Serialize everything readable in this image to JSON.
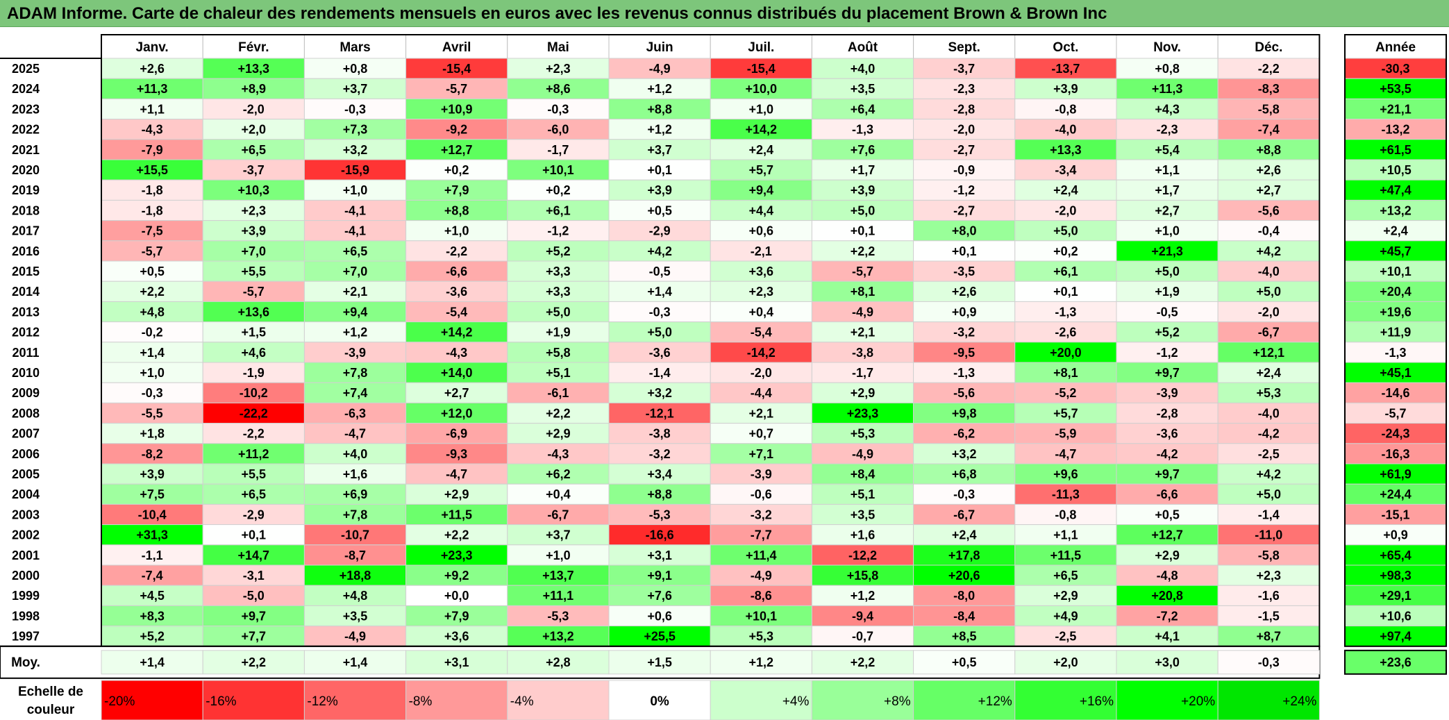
{
  "title": "ADAM Informe. Carte de chaleur des rendements mensuels en euros avec les revenus connus distribués du placement Brown & Brown Inc",
  "chart_data": {
    "type": "heatmap",
    "months": [
      "Janv.",
      "Févr.",
      "Mars",
      "Avril",
      "Mai",
      "Juin",
      "Juil.",
      "Août",
      "Sept.",
      "Oct.",
      "Nov.",
      "Déc."
    ],
    "year_header": "Année",
    "rows": [
      {
        "year": "2025",
        "values": [
          "+2,6",
          "+13,3",
          "+0,8",
          "-15,4",
          "+2,3",
          "-4,9",
          "-15,4",
          "+4,0",
          "-3,7",
          "-13,7",
          "+0,8",
          "-2,2"
        ],
        "annual": "-30,3"
      },
      {
        "year": "2024",
        "values": [
          "+11,3",
          "+8,9",
          "+3,7",
          "-5,7",
          "+8,6",
          "+1,2",
          "+10,0",
          "+3,5",
          "-2,3",
          "+3,9",
          "+11,3",
          "-8,3"
        ],
        "annual": "+53,5"
      },
      {
        "year": "2023",
        "values": [
          "+1,1",
          "-2,0",
          "-0,3",
          "+10,9",
          "-0,3",
          "+8,8",
          "+1,0",
          "+6,4",
          "-2,8",
          "-0,8",
          "+4,3",
          "-5,8"
        ],
        "annual": "+21,1"
      },
      {
        "year": "2022",
        "values": [
          "-4,3",
          "+2,0",
          "+7,3",
          "-9,2",
          "-6,0",
          "+1,2",
          "+14,2",
          "-1,3",
          "-2,0",
          "-4,0",
          "-2,3",
          "-7,4"
        ],
        "annual": "-13,2"
      },
      {
        "year": "2021",
        "values": [
          "-7,9",
          "+6,5",
          "+3,2",
          "+12,7",
          "-1,7",
          "+3,7",
          "+2,4",
          "+7,6",
          "-2,7",
          "+13,3",
          "+5,4",
          "+8,8"
        ],
        "annual": "+61,5"
      },
      {
        "year": "2020",
        "values": [
          "+15,5",
          "-3,7",
          "-15,9",
          "+0,2",
          "+10,1",
          "+0,1",
          "+5,7",
          "+1,7",
          "-0,9",
          "-3,4",
          "+1,1",
          "+2,6"
        ],
        "annual": "+10,5"
      },
      {
        "year": "2019",
        "values": [
          "-1,8",
          "+10,3",
          "+1,0",
          "+7,9",
          "+0,2",
          "+3,9",
          "+9,4",
          "+3,9",
          "-1,2",
          "+2,4",
          "+1,7",
          "+2,7"
        ],
        "annual": "+47,4"
      },
      {
        "year": "2018",
        "values": [
          "-1,8",
          "+2,3",
          "-4,1",
          "+8,8",
          "+6,1",
          "+0,5",
          "+4,4",
          "+5,0",
          "-2,7",
          "-2,0",
          "+2,7",
          "-5,6"
        ],
        "annual": "+13,2"
      },
      {
        "year": "2017",
        "values": [
          "-7,5",
          "+3,9",
          "-4,1",
          "+1,0",
          "-1,2",
          "-2,9",
          "+0,6",
          "+0,1",
          "+8,0",
          "+5,0",
          "+1,0",
          "-0,4"
        ],
        "annual": "+2,4"
      },
      {
        "year": "2016",
        "values": [
          "-5,7",
          "+7,0",
          "+6,5",
          "-2,2",
          "+5,2",
          "+4,2",
          "-2,1",
          "+2,2",
          "+0,1",
          "+0,2",
          "+21,3",
          "+4,2"
        ],
        "annual": "+45,7"
      },
      {
        "year": "2015",
        "values": [
          "+0,5",
          "+5,5",
          "+7,0",
          "-6,6",
          "+3,3",
          "-0,5",
          "+3,6",
          "-5,7",
          "-3,5",
          "+6,1",
          "+5,0",
          "-4,0"
        ],
        "annual": "+10,1"
      },
      {
        "year": "2014",
        "values": [
          "+2,2",
          "-5,7",
          "+2,1",
          "-3,6",
          "+3,3",
          "+1,4",
          "+2,3",
          "+8,1",
          "+2,6",
          "+0,1",
          "+1,9",
          "+5,0"
        ],
        "annual": "+20,4"
      },
      {
        "year": "2013",
        "values": [
          "+4,8",
          "+13,6",
          "+9,4",
          "-5,4",
          "+5,0",
          "-0,3",
          "+0,4",
          "-4,9",
          "+0,9",
          "-1,3",
          "-0,5",
          "-2,0"
        ],
        "annual": "+19,6"
      },
      {
        "year": "2012",
        "values": [
          "-0,2",
          "+1,5",
          "+1,2",
          "+14,2",
          "+1,9",
          "+5,0",
          "-5,4",
          "+2,1",
          "-3,2",
          "-2,6",
          "+5,2",
          "-6,7"
        ],
        "annual": "+11,9"
      },
      {
        "year": "2011",
        "values": [
          "+1,4",
          "+4,6",
          "-3,9",
          "-4,3",
          "+5,8",
          "-3,6",
          "-14,2",
          "-3,8",
          "-9,5",
          "+20,0",
          "-1,2",
          "+12,1"
        ],
        "annual": "-1,3"
      },
      {
        "year": "2010",
        "values": [
          "+1,0",
          "-1,9",
          "+7,8",
          "+14,0",
          "+5,1",
          "-1,4",
          "-2,0",
          "-1,7",
          "-1,3",
          "+8,1",
          "+9,7",
          "+2,4"
        ],
        "annual": "+45,1"
      },
      {
        "year": "2009",
        "values": [
          "-0,3",
          "-10,2",
          "+7,4",
          "+2,7",
          "-6,1",
          "+3,2",
          "-4,4",
          "+2,9",
          "-5,6",
          "-5,2",
          "-3,9",
          "+5,3"
        ],
        "annual": "-14,6"
      },
      {
        "year": "2008",
        "values": [
          "-5,5",
          "-22,2",
          "-6,3",
          "+12,0",
          "+2,2",
          "-12,1",
          "+2,1",
          "+23,3",
          "+9,8",
          "+5,7",
          "-2,8",
          "-4,0"
        ],
        "annual": "-5,7"
      },
      {
        "year": "2007",
        "values": [
          "+1,8",
          "-2,2",
          "-4,7",
          "-6,9",
          "+2,9",
          "-3,8",
          "+0,7",
          "+5,3",
          "-6,2",
          "-5,9",
          "-3,6",
          "-4,2"
        ],
        "annual": "-24,3"
      },
      {
        "year": "2006",
        "values": [
          "-8,2",
          "+11,2",
          "+4,0",
          "-9,3",
          "-4,3",
          "-3,2",
          "+7,1",
          "-4,9",
          "+3,2",
          "-4,7",
          "-4,2",
          "-2,5"
        ],
        "annual": "-16,3"
      },
      {
        "year": "2005",
        "values": [
          "+3,9",
          "+5,5",
          "+1,6",
          "-4,7",
          "+6,2",
          "+3,4",
          "-3,9",
          "+8,4",
          "+6,8",
          "+9,6",
          "+9,7",
          "+4,2"
        ],
        "annual": "+61,9"
      },
      {
        "year": "2004",
        "values": [
          "+7,5",
          "+6,5",
          "+6,9",
          "+2,9",
          "+0,4",
          "+8,8",
          "-0,6",
          "+5,1",
          "-0,3",
          "-11,3",
          "-6,6",
          "+5,0"
        ],
        "annual": "+24,4"
      },
      {
        "year": "2003",
        "values": [
          "-10,4",
          "-2,9",
          "+7,8",
          "+11,5",
          "-6,7",
          "-5,3",
          "-3,2",
          "+3,5",
          "-6,7",
          "-0,8",
          "+0,5",
          "-1,4"
        ],
        "annual": "-15,1"
      },
      {
        "year": "2002",
        "values": [
          "+31,3",
          "+0,1",
          "-10,7",
          "+2,2",
          "+3,7",
          "-16,6",
          "-7,7",
          "+1,6",
          "+2,4",
          "+1,1",
          "+12,7",
          "-11,0"
        ],
        "annual": "+0,9"
      },
      {
        "year": "2001",
        "values": [
          "-1,1",
          "+14,7",
          "-8,7",
          "+23,3",
          "+1,0",
          "+3,1",
          "+11,4",
          "-12,2",
          "+17,8",
          "+11,5",
          "+2,9",
          "-5,8"
        ],
        "annual": "+65,4"
      },
      {
        "year": "2000",
        "values": [
          "-7,4",
          "-3,1",
          "+18,8",
          "+9,2",
          "+13,7",
          "+9,1",
          "-4,9",
          "+15,8",
          "+20,6",
          "+6,5",
          "-4,8",
          "+2,3"
        ],
        "annual": "+98,3"
      },
      {
        "year": "1999",
        "values": [
          "+4,5",
          "-5,0",
          "+4,8",
          "+0,0",
          "+11,1",
          "+7,6",
          "-8,6",
          "+1,2",
          "-8,0",
          "+2,9",
          "+20,8",
          "-1,6"
        ],
        "annual": "+29,1"
      },
      {
        "year": "1998",
        "values": [
          "+8,3",
          "+9,7",
          "+3,5",
          "+7,9",
          "-5,3",
          "+0,6",
          "+10,1",
          "-9,4",
          "-8,4",
          "+4,9",
          "-7,2",
          "-1,5"
        ],
        "annual": "+10,6"
      },
      {
        "year": "1997",
        "values": [
          "+5,2",
          "+7,7",
          "-4,9",
          "+3,6",
          "+13,2",
          "+25,5",
          "+5,3",
          "-0,7",
          "+8,5",
          "-2,5",
          "+4,1",
          "+8,7"
        ],
        "annual": "+97,4"
      }
    ],
    "average": {
      "label": "Moy.",
      "values": [
        "+1,4",
        "+2,2",
        "+1,4",
        "+3,1",
        "+2,8",
        "+1,5",
        "+1,2",
        "+2,2",
        "+0,5",
        "+2,0",
        "+3,0",
        "-0,3"
      ],
      "annual": "+23,6"
    },
    "scale": {
      "label": "Echelle de couleur",
      "steps": [
        {
          "label": "-20%",
          "color": "#ff0000"
        },
        {
          "label": "-16%",
          "color": "#ff3333"
        },
        {
          "label": "-12%",
          "color": "#ff6666"
        },
        {
          "label": "-8%",
          "color": "#ff9999"
        },
        {
          "label": "-4%",
          "color": "#ffcccc"
        },
        {
          "label": "0%",
          "color": "#ffffff"
        },
        {
          "label": "+4%",
          "color": "#ccffcc"
        },
        {
          "label": "+8%",
          "color": "#99ff99"
        },
        {
          "label": "+12%",
          "color": "#66ff66"
        },
        {
          "label": "+16%",
          "color": "#33ff33"
        },
        {
          "label": "+20%",
          "color": "#00ff00"
        },
        {
          "label": "+24%",
          "color": "#00e600"
        }
      ]
    },
    "colors": {
      "title_bar": "#7dc67b",
      "negative_max": "#ff0000",
      "positive_max": "#00ff00",
      "neutral": "#ffffff"
    }
  }
}
